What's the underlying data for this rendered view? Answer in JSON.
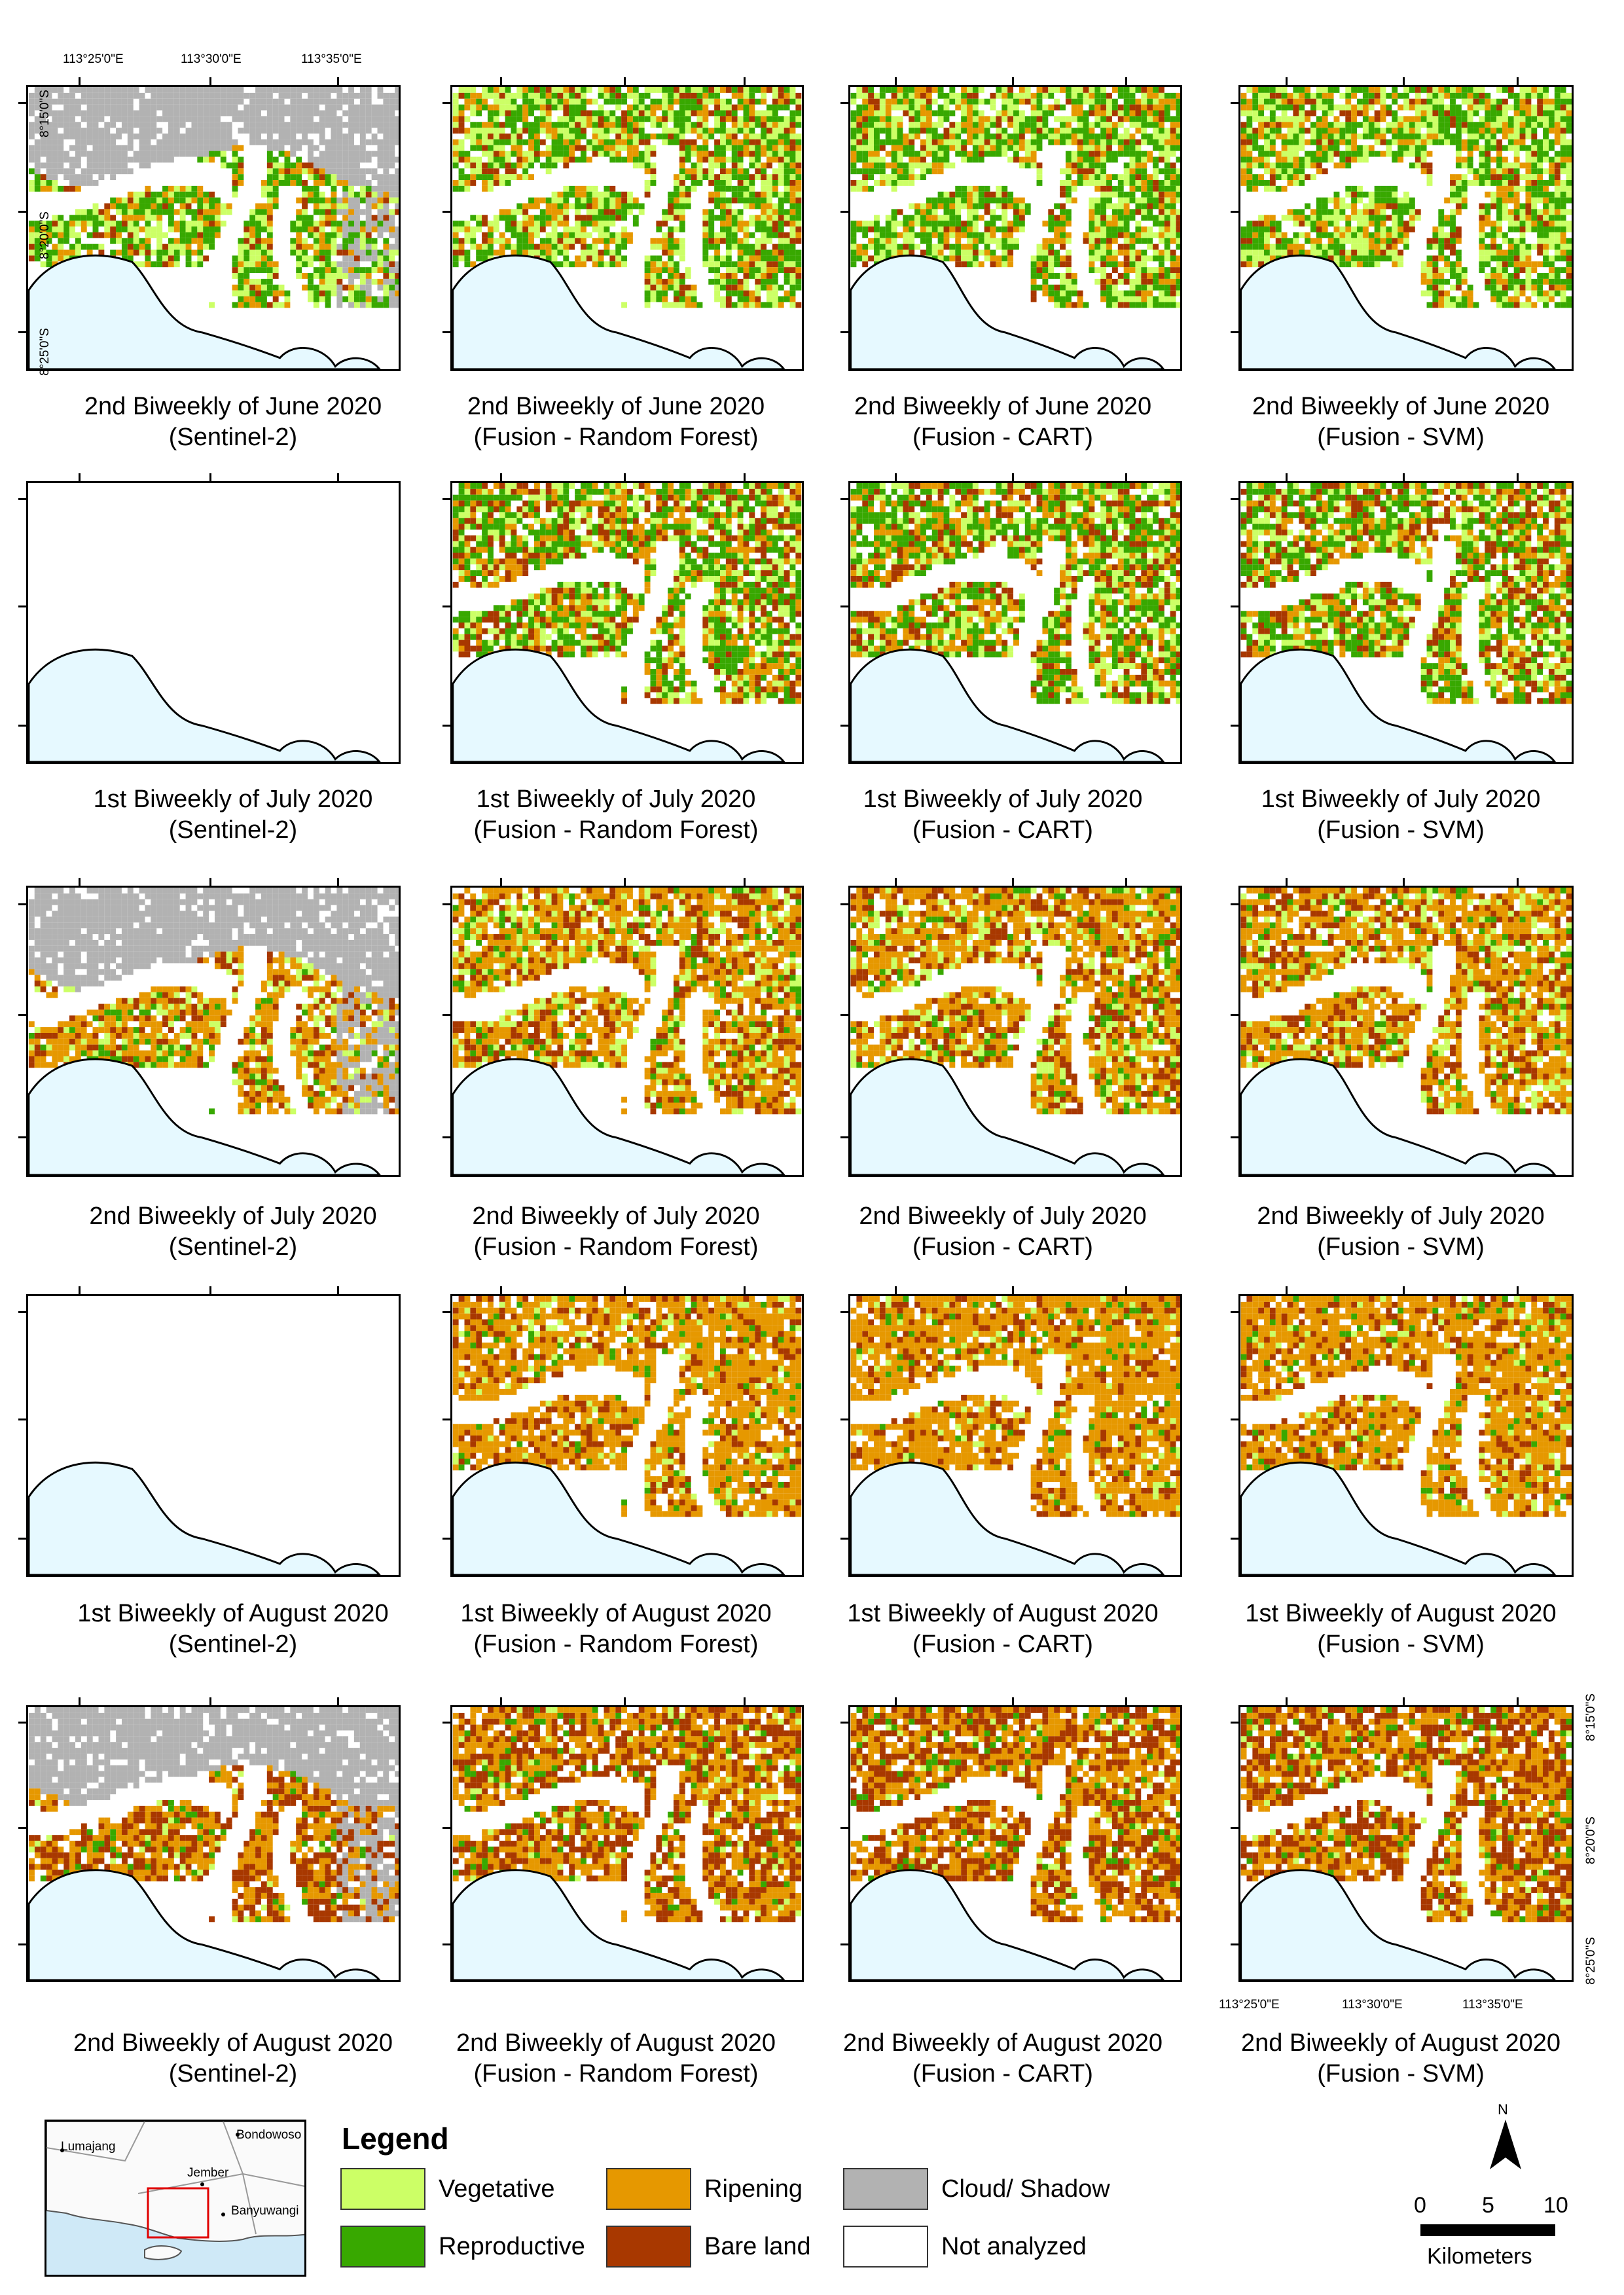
{
  "captions": [
    [
      [
        "2nd Biweekly of June 2020",
        "(Sentinel-2)"
      ],
      [
        "2nd Biweekly of June 2020",
        "(Fusion - Random Forest)"
      ],
      [
        "2nd Biweekly of June 2020",
        "(Fusion - CART)"
      ],
      [
        "2nd Biweekly of June 2020",
        "(Fusion - SVM)"
      ]
    ],
    [
      [
        "1st Biweekly of July 2020",
        "(Sentinel-2)"
      ],
      [
        "1st Biweekly of July 2020",
        "(Fusion - Random Forest)"
      ],
      [
        "1st Biweekly of July 2020",
        "(Fusion - CART)"
      ],
      [
        "1st Biweekly of July 2020",
        "(Fusion - SVM)"
      ]
    ],
    [
      [
        "2nd Biweekly of July 2020",
        "(Sentinel-2)"
      ],
      [
        "2nd Biweekly of July 2020",
        "(Fusion - Random Forest)"
      ],
      [
        "2nd Biweekly of July 2020",
        "(Fusion - CART)"
      ],
      [
        "2nd Biweekly of July 2020",
        "(Fusion - SVM)"
      ]
    ],
    [
      [
        "1st Biweekly of August 2020",
        "(Sentinel-2)"
      ],
      [
        "1st Biweekly of August 2020",
        "(Fusion - Random Forest)"
      ],
      [
        "1st Biweekly of August 2020",
        "(Fusion - CART)"
      ],
      [
        "1st Biweekly of August 2020",
        "(Fusion - SVM)"
      ]
    ],
    [
      [
        "2nd Biweekly of August 2020",
        "(Sentinel-2)"
      ],
      [
        "2nd Biweekly of August 2020",
        "(Fusion - Random Forest)"
      ],
      [
        "2nd Biweekly of August 2020",
        "(Fusion - CART)"
      ],
      [
        "2nd Biweekly of August 2020",
        "(Fusion - SVM)"
      ]
    ]
  ],
  "coordinates": {
    "longitudes": [
      "113°25'0\"E",
      "113°30'0\"E",
      "113°35'0\"E"
    ],
    "latitudes": [
      "8°15'0\"S",
      "8°20'0\"S",
      "8°25'0\"S"
    ]
  },
  "legend": {
    "title": "Legend",
    "items": [
      {
        "label": "Vegetative",
        "color": "#ccff66"
      },
      {
        "label": "Reproductive",
        "color": "#38a800"
      },
      {
        "label": "Ripening",
        "color": "#e69800"
      },
      {
        "label": "Bare land",
        "color": "#a83800"
      },
      {
        "label": "Cloud/ Shadow",
        "color": "#b2b2b2"
      },
      {
        "label": "Not analyzed",
        "color": "#ffffff"
      }
    ]
  },
  "inset_map": {
    "labels": [
      "Lumajang",
      "Bondowoso",
      "Jember",
      "Banyuwangi"
    ]
  },
  "north_arrow": {
    "label": "N"
  },
  "scale_bar": {
    "ticks": [
      "0",
      "5",
      "10"
    ],
    "unit": "Kilometers"
  },
  "colors": {
    "sea": "#e6f9ff",
    "vegetative": "#ccff66",
    "reproductive": "#38a800",
    "ripening": "#e69800",
    "bare_land": "#a83800",
    "cloud": "#b2b2b2"
  }
}
